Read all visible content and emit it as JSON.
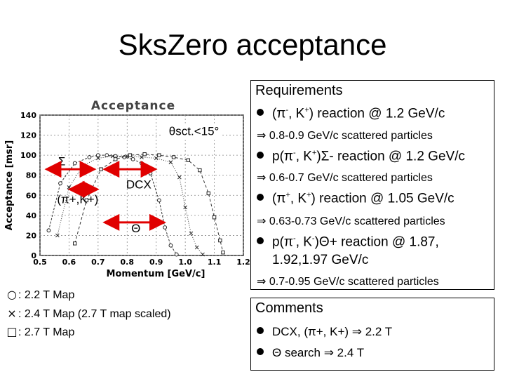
{
  "title": "SksZero acceptance",
  "chart_data": {
    "type": "line",
    "title": "Acceptance",
    "xlabel": "Momentum [GeV/c]",
    "ylabel": "Acceptance [msr]",
    "xlim": [
      0.5,
      1.2
    ],
    "ylim": [
      0,
      140
    ],
    "xticks": [
      "0.5",
      "0.6",
      "0.7",
      "0.8",
      "0.9",
      "1.0",
      "1.1",
      "1.2"
    ],
    "yticks": [
      "0",
      "20",
      "40",
      "60",
      "80",
      "100",
      "120",
      "140"
    ],
    "series": [
      {
        "marker": "circle",
        "x": [
          0.53,
          0.57,
          0.62,
          0.67,
          0.7,
          0.73,
          0.76,
          0.79,
          0.82,
          0.85,
          0.88,
          0.91,
          0.93,
          0.95,
          0.97
        ],
        "y": [
          25,
          72,
          92,
          98,
          100,
          100,
          99,
          98,
          96,
          92,
          82,
          55,
          28,
          10,
          1
        ]
      },
      {
        "marker": "cross",
        "x": [
          0.56,
          0.6,
          0.65,
          0.7,
          0.75,
          0.8,
          0.85,
          0.9,
          0.95,
          0.98,
          1.0,
          1.02,
          1.04,
          1.06
        ],
        "y": [
          20,
          68,
          90,
          97,
          99,
          99,
          98,
          97,
          93,
          78,
          48,
          22,
          8,
          1
        ]
      },
      {
        "marker": "square",
        "x": [
          0.62,
          0.66,
          0.71,
          0.76,
          0.81,
          0.86,
          0.91,
          0.96,
          1.01,
          1.05,
          1.08,
          1.1,
          1.12,
          1.13
        ],
        "y": [
          12,
          55,
          86,
          96,
          100,
          101,
          100,
          98,
          95,
          85,
          62,
          38,
          15,
          3
        ]
      }
    ],
    "annotations": [
      {
        "text": "θsct.<15°",
        "x": 1.03,
        "y": 120
      },
      {
        "text": "Σ",
        "x": 0.575,
        "y": 90
      },
      {
        "text": "DCX",
        "x": 0.84,
        "y": 67
      },
      {
        "text": "(π+,K+)",
        "x": 0.63,
        "y": 52
      },
      {
        "text": "Θ",
        "x": 0.83,
        "y": 23
      }
    ],
    "spans": [
      {
        "x1": 0.53,
        "x2": 0.68,
        "y": 86
      },
      {
        "x1": 0.73,
        "x2": 0.89,
        "y": 86
      },
      {
        "x1": 0.61,
        "x2": 0.69,
        "y": 66
      },
      {
        "x1": 0.73,
        "x2": 0.92,
        "y": 33
      }
    ]
  },
  "legend": [
    {
      "sym": "○",
      "text": ": 2.2 T Map"
    },
    {
      "sym": "×",
      "text": ": 2.4 T Map (2.7 T map scaled)"
    },
    {
      "sym": "□",
      "text": ": 2.7 T Map"
    }
  ],
  "requirements": {
    "heading": "Requirements",
    "items": [
      {
        "pre": "(π",
        "s1": "-",
        "mid": ", K",
        "s2": "+",
        "post": ") reaction @ 1.2 GeV/c"
      },
      {
        "pre": "p(π",
        "s1": "-",
        "mid": ", K",
        "s2": "+",
        "post": ")Σ- reaction @ 1.2 GeV/c"
      },
      {
        "pre": "(π",
        "s1": "+",
        "mid": ", K",
        "s2": "+",
        "post": ") reaction @ 1.05 GeV/c"
      },
      {
        "pre": "p(π",
        "s1": "-",
        "mid": ", K",
        "s2": "-",
        "post": ")Θ+ reaction @ 1.87,"
      }
    ],
    "item4_cont": "1.92,1.97 GeV/c",
    "subs": [
      "⇒ 0.8-0.9 GeV/c scattered particles",
      "⇒ 0.6-0.7 GeV/c scattered particles",
      "⇒ 0.63-0.73 GeV/c scattered particles",
      "⇒ 0.7-0.95 GeV/c scattered particles"
    ]
  },
  "comments": {
    "heading": "Comments",
    "items": [
      "DCX, (π+, K+) ⇒ 2.2 T",
      "Θ search ⇒ 2.4 T"
    ]
  }
}
